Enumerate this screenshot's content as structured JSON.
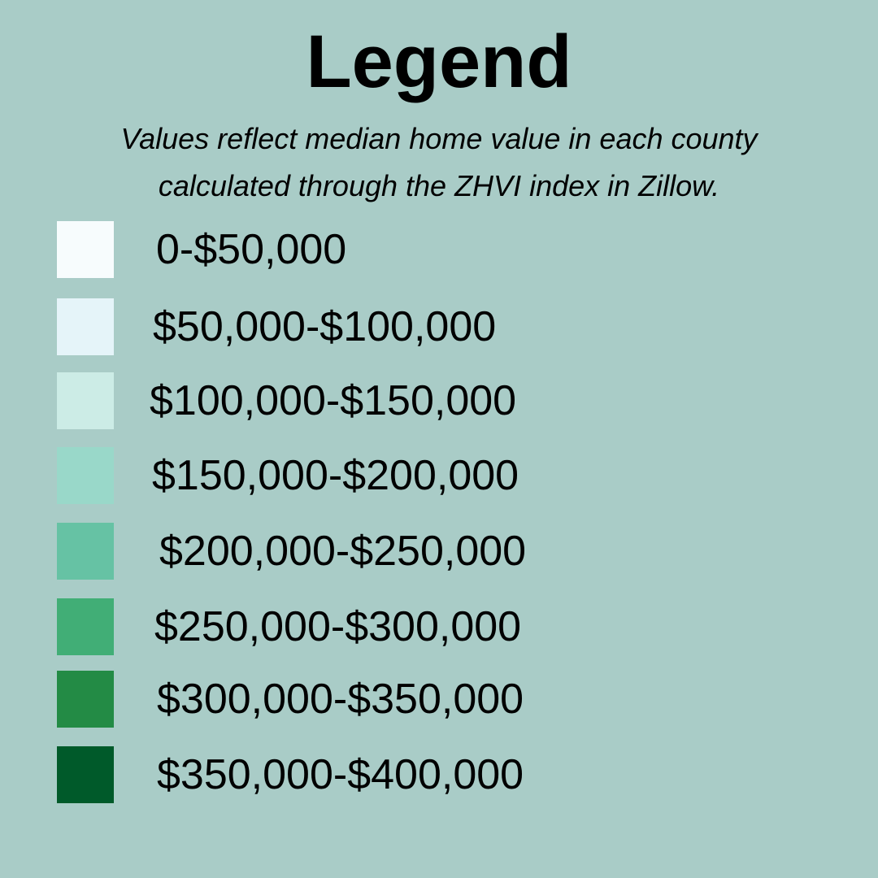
{
  "background_color": "#a9ccc7",
  "legend": {
    "title": "Legend",
    "subtitle_lines": [
      "Values reflect median home value in each county",
      "calculated through the ZHVI index in Zillow."
    ],
    "items": [
      {
        "label": "0-$50,000",
        "color": "#f7fcfd"
      },
      {
        "label": "$50,000-$100,000",
        "color": "#e5f4f9"
      },
      {
        "label": "$100,000-$150,000",
        "color": "#ccece6"
      },
      {
        "label": "$150,000-$200,000",
        "color": "#99d8c9"
      },
      {
        "label": "$200,000-$250,000",
        "color": "#66c2a4"
      },
      {
        "label": "$250,000-$300,000",
        "color": "#41ae76"
      },
      {
        "label": "$300,000-$350,000",
        "color": "#238b45"
      },
      {
        "label": "$350,000-$400,000",
        "color": "#005a2a"
      }
    ]
  }
}
